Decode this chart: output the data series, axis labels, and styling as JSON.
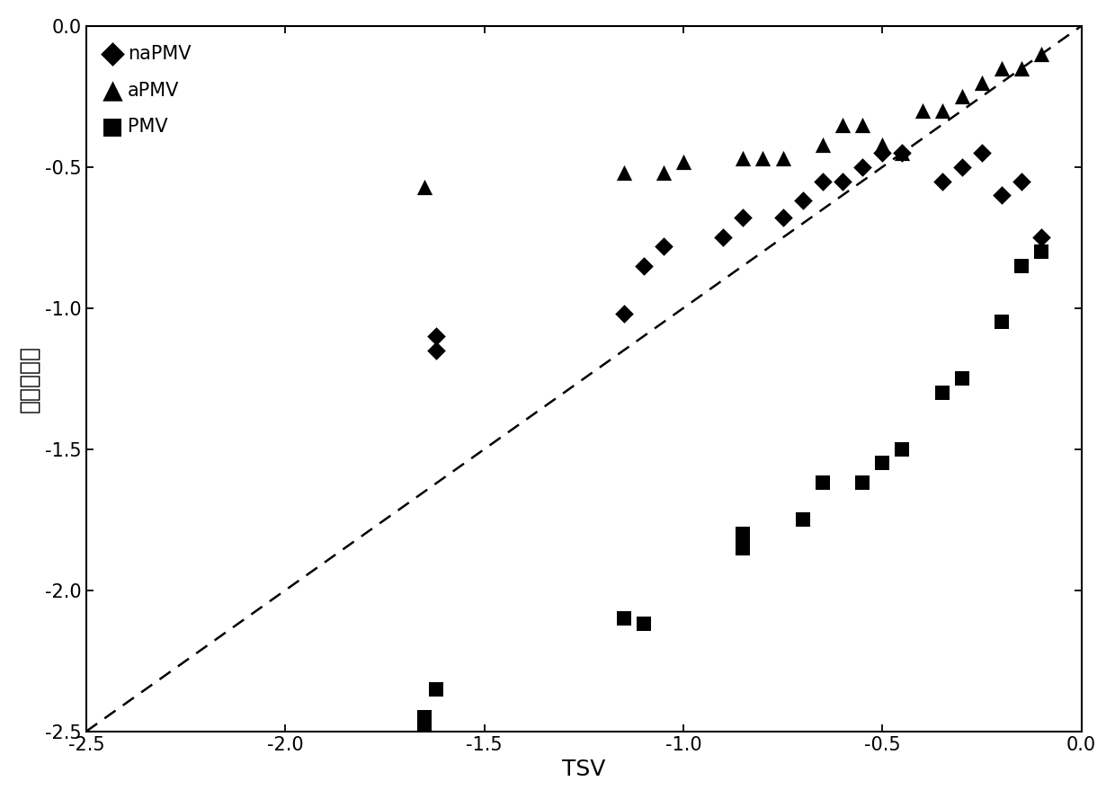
{
  "title": "",
  "xlabel": "TSV",
  "ylabel": "模型预测值",
  "xlim": [
    -2.5,
    0.0
  ],
  "ylim": [
    -2.5,
    0.0
  ],
  "xticks": [
    -2.5,
    -2.0,
    -1.5,
    -1.0,
    -0.5,
    0.0
  ],
  "yticks": [
    -2.5,
    -2.0,
    -1.5,
    -1.0,
    -0.5,
    0.0
  ],
  "naPMV_x": [
    -1.62,
    -1.62,
    -1.15,
    -1.1,
    -1.05,
    -0.9,
    -0.85,
    -0.75,
    -0.7,
    -0.65,
    -0.6,
    -0.55,
    -0.5,
    -0.45,
    -0.35,
    -0.3,
    -0.25,
    -0.2,
    -0.15,
    -0.1
  ],
  "naPMV_y": [
    -1.1,
    -1.15,
    -1.02,
    -0.85,
    -0.78,
    -0.75,
    -0.68,
    -0.68,
    -0.62,
    -0.55,
    -0.55,
    -0.5,
    -0.45,
    -0.45,
    -0.55,
    -0.5,
    -0.45,
    -0.6,
    -0.55,
    -0.75
  ],
  "aPMV_x": [
    -1.65,
    -1.15,
    -1.05,
    -1.0,
    -0.85,
    -0.8,
    -0.75,
    -0.65,
    -0.6,
    -0.55,
    -0.5,
    -0.45,
    -0.4,
    -0.35,
    -0.3,
    -0.25,
    -0.2,
    -0.15,
    -0.1
  ],
  "aPMV_y": [
    -0.57,
    -0.52,
    -0.52,
    -0.48,
    -0.47,
    -0.47,
    -0.47,
    -0.42,
    -0.35,
    -0.35,
    -0.42,
    -0.45,
    -0.3,
    -0.3,
    -0.25,
    -0.2,
    -0.15,
    -0.15,
    -0.1
  ],
  "PMV_x": [
    -1.65,
    -1.65,
    -1.62,
    -1.15,
    -1.1,
    -0.85,
    -0.85,
    -0.7,
    -0.65,
    -0.55,
    -0.5,
    -0.45,
    -0.35,
    -0.3,
    -0.2,
    -0.15,
    -0.1
  ],
  "PMV_y": [
    -2.5,
    -2.45,
    -2.35,
    -2.1,
    -2.12,
    -1.85,
    -1.8,
    -1.75,
    -1.62,
    -1.62,
    -1.55,
    -1.5,
    -1.3,
    -1.25,
    -1.05,
    -0.85,
    -0.8
  ],
  "marker_size": 110,
  "color": "black",
  "background_color": "white",
  "axis_linewidth": 1.5,
  "font_size_label": 18,
  "font_size_tick": 15,
  "legend_font_size": 15
}
